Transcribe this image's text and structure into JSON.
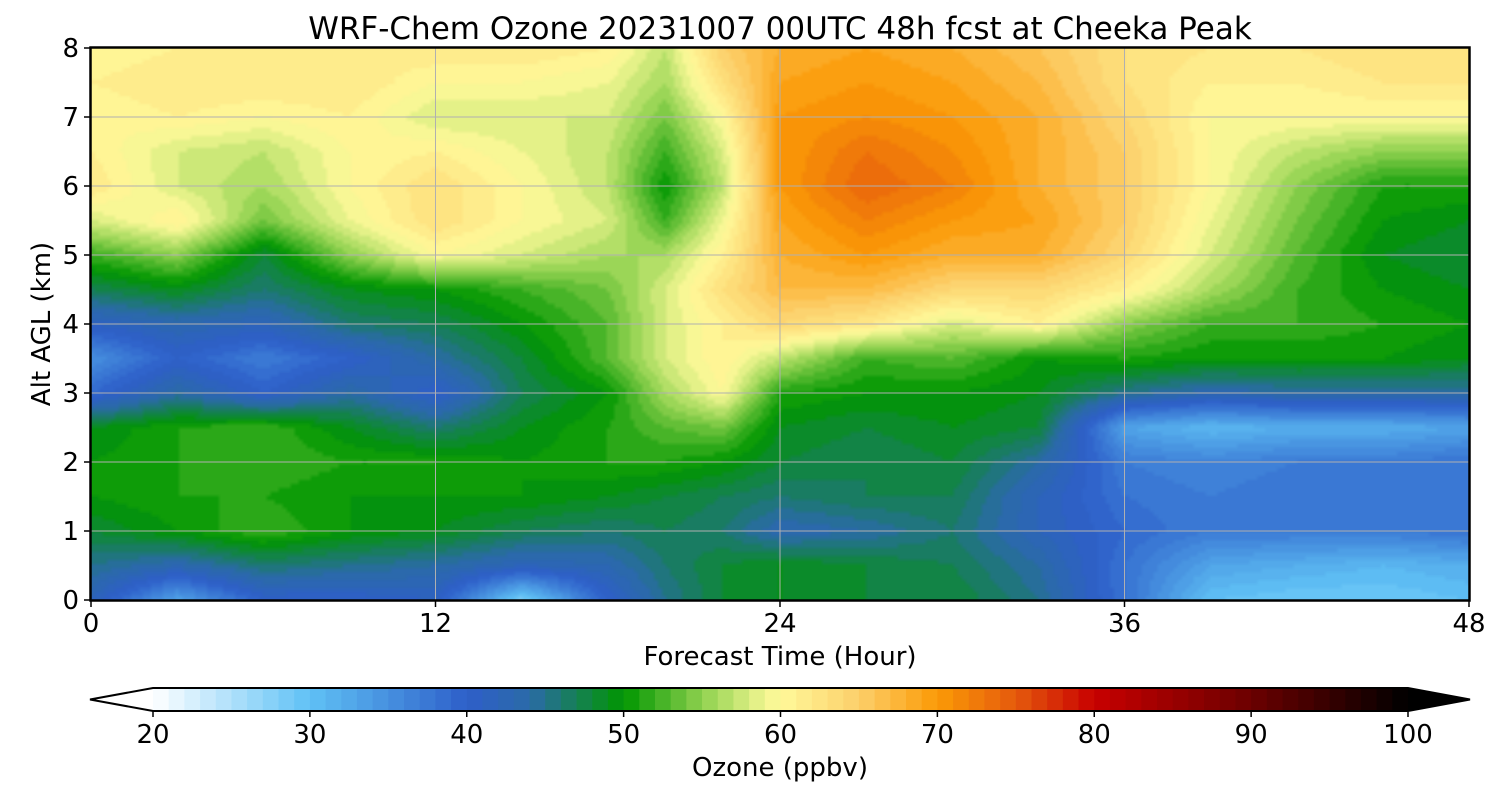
{
  "chart_data": {
    "type": "heatmap",
    "title": "WRF-Chem Ozone  20231007 00UTC 48h fcst at Cheeka Peak",
    "xlabel": "Forecast Time (Hour)",
    "ylabel": "Alt AGL (km)",
    "xlim": [
      0,
      48
    ],
    "ylim": [
      0,
      8
    ],
    "xticks": [
      0,
      12,
      24,
      36,
      48
    ],
    "xtick_labels": [
      "0",
      "12",
      "24",
      "36",
      "48"
    ],
    "yticks": [
      0,
      1,
      2,
      3,
      4,
      5,
      6,
      7,
      8
    ],
    "ytick_labels": [
      "0",
      "1",
      "2",
      "3",
      "4",
      "5",
      "6",
      "7",
      "8"
    ],
    "grid": true,
    "x": [
      0,
      3,
      6,
      9,
      12,
      15,
      18,
      20,
      22,
      24,
      27,
      30,
      33,
      36,
      39,
      42,
      45,
      48
    ],
    "y": [
      0,
      0.5,
      1,
      1.5,
      2,
      2.5,
      3,
      3.5,
      4,
      4.5,
      5,
      5.5,
      6,
      6.5,
      7,
      7.5,
      8
    ],
    "z": [
      [
        42,
        33,
        40,
        40,
        41,
        28,
        40,
        45,
        48,
        49,
        48,
        48,
        45,
        38,
        30,
        29,
        29,
        30
      ],
      [
        45,
        43,
        46,
        45,
        44,
        42,
        43,
        46,
        48,
        49,
        48,
        47,
        44,
        38,
        33,
        32,
        31,
        32
      ],
      [
        48,
        50,
        52,
        50,
        49,
        47,
        46,
        47,
        46,
        43,
        44,
        46,
        42,
        39,
        37,
        37,
        37,
        38
      ],
      [
        50,
        51,
        51,
        50,
        50,
        50,
        49,
        48,
        47,
        46,
        47,
        47,
        42,
        38,
        37,
        38,
        38,
        38
      ],
      [
        50,
        51,
        52,
        51,
        51,
        50,
        51,
        51,
        50,
        48,
        47,
        48,
        44,
        37,
        36,
        37,
        37,
        38
      ],
      [
        49,
        51,
        52,
        49,
        46,
        49,
        51,
        53,
        54,
        49,
        48,
        49,
        48,
        33,
        31,
        32,
        32,
        33
      ],
      [
        39,
        44,
        40,
        44,
        40,
        47,
        50,
        56,
        60,
        51,
        50,
        50,
        49,
        45,
        43,
        44,
        44,
        44
      ],
      [
        35,
        40,
        37,
        40,
        44,
        48,
        53,
        58,
        61,
        57,
        52,
        53,
        50,
        51,
        50,
        50,
        50,
        49
      ],
      [
        41,
        43,
        42,
        46,
        47,
        50,
        53,
        58,
        61,
        64,
        62,
        58,
        61,
        55,
        52,
        52,
        51,
        50
      ],
      [
        47,
        49,
        46,
        49,
        50,
        52,
        54,
        58,
        63,
        67,
        67,
        64,
        64,
        61,
        56,
        52,
        50,
        49
      ],
      [
        52,
        55,
        48,
        55,
        60,
        58,
        56,
        56,
        61,
        68,
        70,
        68,
        68,
        64,
        58,
        53,
        49,
        48
      ],
      [
        58,
        61,
        54,
        59,
        63,
        60,
        58,
        52,
        59,
        69,
        72,
        70,
        69,
        65,
        59,
        54,
        50,
        49
      ],
      [
        62,
        58,
        56,
        60,
        63,
        60,
        57,
        50,
        57,
        70,
        74,
        72,
        68,
        65,
        60,
        55,
        51,
        51
      ],
      [
        61,
        58,
        57,
        60,
        61,
        59,
        57,
        52,
        58,
        70,
        73,
        71,
        68,
        65,
        60,
        57,
        55,
        55
      ],
      [
        60,
        61,
        60,
        61,
        58,
        58,
        58,
        54,
        60,
        70,
        71,
        70,
        68,
        64,
        60,
        60,
        60,
        60
      ],
      [
        61,
        62,
        62,
        62,
        60,
        60,
        59,
        56,
        63,
        69,
        70,
        69,
        67,
        63,
        61,
        61,
        62,
        62
      ],
      [
        60,
        61,
        62,
        61,
        62,
        62,
        61,
        57,
        65,
        68,
        69,
        68,
        66,
        63,
        62,
        62,
        63,
        63
      ]
    ],
    "colorbar": {
      "label": "Ozone  (ppbv)",
      "min": 20,
      "max": 100,
      "step": 1,
      "extend": "both",
      "ticks": [
        20,
        30,
        40,
        50,
        60,
        70,
        80,
        90,
        100
      ],
      "tick_labels": [
        "20",
        "30",
        "40",
        "50",
        "60",
        "70",
        "80",
        "90",
        "100"
      ],
      "color_stops": [
        [
          20,
          "#ffffff"
        ],
        [
          30,
          "#5fc1f5"
        ],
        [
          40,
          "#2e5fc9"
        ],
        [
          44,
          "#2a6aa8"
        ],
        [
          50,
          "#009600"
        ],
        [
          55,
          "#8fd14f"
        ],
        [
          59,
          "#f0f590"
        ],
        [
          60,
          "#fff99a"
        ],
        [
          65,
          "#fccf6a"
        ],
        [
          70,
          "#fb9a06"
        ],
        [
          75,
          "#e55a0d"
        ],
        [
          80,
          "#c80000"
        ],
        [
          90,
          "#6b0000"
        ],
        [
          100,
          "#000000"
        ]
      ]
    }
  }
}
